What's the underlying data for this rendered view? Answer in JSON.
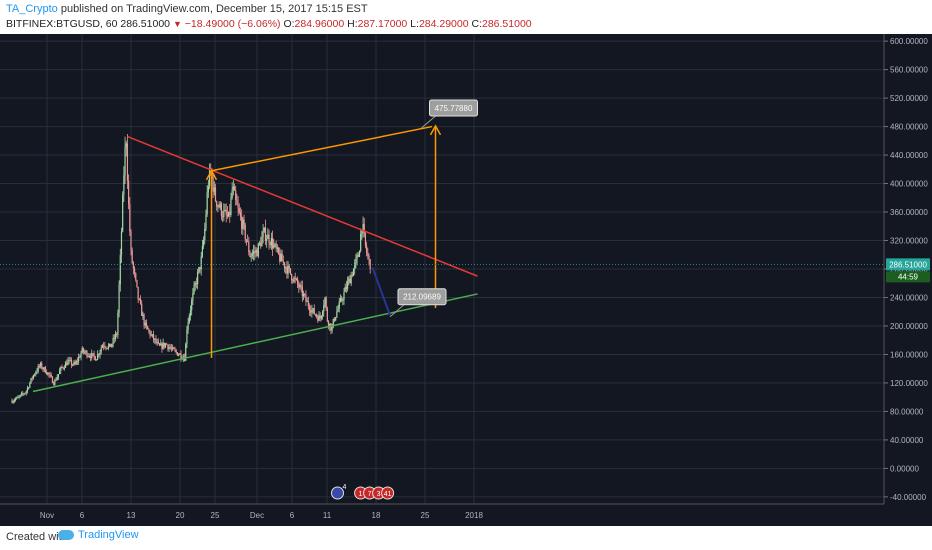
{
  "header": {
    "author": "TA_Crypto",
    "published_text": "published on TradingView.com, December 15, 2017 15:15 EST",
    "symbol": "BITFINEX:BTGUSD, 60",
    "last": "286.51000",
    "change_arrow": "▼",
    "change": "−18.49000 (−6.06%)",
    "open_label": "O:",
    "open": "284.96000",
    "high_label": "H:",
    "high": "287.17000",
    "low_label": "L:",
    "low": "284.29000",
    "close_label": "C:",
    "close": "286.51000"
  },
  "footer": {
    "created_with": "Created with",
    "brand": "TradingView"
  },
  "colors": {
    "background": "#131722",
    "grid": "#2a2e39",
    "candle_up": "#a5d6a7",
    "candle_down": "#ef9a9a",
    "resistance": "#e53935",
    "support": "#4caf50",
    "projection": "#ff9800",
    "retrace": "#283593",
    "price_line": "#26a69a"
  },
  "chart_data": {
    "type": "candlestick",
    "title": "",
    "xlabel": "",
    "ylabel": "",
    "ylim": [
      -50,
      610
    ],
    "yticks": [
      600,
      560,
      520,
      480,
      440,
      400,
      360,
      320,
      280,
      240,
      200,
      160,
      120,
      80,
      40,
      0,
      -40
    ],
    "ytick_labels": [
      "600.00000",
      "560.00000",
      "520.00000",
      "480.00000",
      "440.00000",
      "400.00000",
      "360.00000",
      "320.00000",
      "280.00000",
      "240.00000",
      "200.00000",
      "160.00000",
      "120.00000",
      "80.00000",
      "40.00000",
      "0.00000",
      "-40.00000"
    ],
    "xlim": [
      -5,
      61
    ],
    "xticks": [
      {
        "day": 0,
        "label": "Nov"
      },
      {
        "day": 5,
        "label": "6"
      },
      {
        "day": 12,
        "label": "13"
      },
      {
        "day": 19,
        "label": "20"
      },
      {
        "day": 24,
        "label": "25"
      },
      {
        "day": 30,
        "label": "Dec"
      },
      {
        "day": 35,
        "label": "6"
      },
      {
        "day": 40,
        "label": "11"
      },
      {
        "day": 47,
        "label": "18"
      },
      {
        "day": 54,
        "label": "25"
      },
      {
        "day": 61,
        "label": "2018"
      }
    ],
    "price_path": [
      [
        -5,
        95
      ],
      [
        -4,
        100
      ],
      [
        -3,
        108
      ],
      [
        -2,
        130
      ],
      [
        -1,
        145
      ],
      [
        0,
        135
      ],
      [
        1,
        120
      ],
      [
        2,
        140
      ],
      [
        3,
        150
      ],
      [
        4,
        145
      ],
      [
        5,
        165
      ],
      [
        6,
        160
      ],
      [
        7,
        155
      ],
      [
        8,
        175
      ],
      [
        9,
        170
      ],
      [
        10,
        190
      ],
      [
        10.5,
        300
      ],
      [
        11,
        420
      ],
      [
        11.3,
        470
      ],
      [
        11.6,
        380
      ],
      [
        12,
        300
      ],
      [
        13,
        240
      ],
      [
        14,
        200
      ],
      [
        15,
        185
      ],
      [
        16,
        170
      ],
      [
        17,
        175
      ],
      [
        18,
        165
      ],
      [
        19,
        160
      ],
      [
        19.7,
        155
      ],
      [
        20,
        200
      ],
      [
        21,
        250
      ],
      [
        22,
        290
      ],
      [
        22.5,
        330
      ],
      [
        23,
        400
      ],
      [
        23.4,
        418
      ],
      [
        24,
        380
      ],
      [
        25,
        360
      ],
      [
        26,
        350
      ],
      [
        26.5,
        395
      ],
      [
        27,
        370
      ],
      [
        28,
        340
      ],
      [
        29,
        300
      ],
      [
        30,
        305
      ],
      [
        31,
        330
      ],
      [
        32,
        320
      ],
      [
        33,
        300
      ],
      [
        34,
        285
      ],
      [
        35,
        270
      ],
      [
        36,
        255
      ],
      [
        37,
        235
      ],
      [
        38,
        220
      ],
      [
        39,
        210
      ],
      [
        39.7,
        240
      ],
      [
        40,
        210
      ],
      [
        40.7,
        195
      ],
      [
        41,
        210
      ],
      [
        42,
        235
      ],
      [
        43,
        260
      ],
      [
        44,
        285
      ],
      [
        44.5,
        300
      ],
      [
        45,
        345
      ],
      [
        45.5,
        310
      ],
      [
        46,
        290
      ],
      [
        46.3,
        286.51
      ]
    ],
    "last_price": 286.51,
    "last_price_label": "286.51000",
    "countdown_label": "44:59",
    "trendlines": [
      {
        "role": "resistance",
        "from": [
          11.5,
          466
        ],
        "to": [
          61.5,
          270
        ]
      },
      {
        "role": "support",
        "from": [
          -2,
          108
        ],
        "to": [
          61.5,
          245
        ]
      },
      {
        "role": "projection-top",
        "from": [
          23.5,
          418
        ],
        "to": [
          55,
          480
        ]
      },
      {
        "role": "retrace",
        "from": [
          46.5,
          282
        ],
        "to": [
          49,
          215
        ]
      }
    ],
    "arrows": [
      {
        "from": [
          23.5,
          155
        ],
        "to": [
          23.5,
          418
        ]
      },
      {
        "from": [
          55.5,
          225
        ],
        "to": [
          55.5,
          481
        ]
      }
    ],
    "callouts": [
      {
        "label": "475.77880",
        "at": [
          53.5,
          478
        ]
      },
      {
        "label": "212.09689",
        "at": [
          49,
          213
        ]
      }
    ],
    "event_badges": {
      "left": "4",
      "group": [
        "1",
        "7",
        "3",
        "41"
      ]
    }
  }
}
